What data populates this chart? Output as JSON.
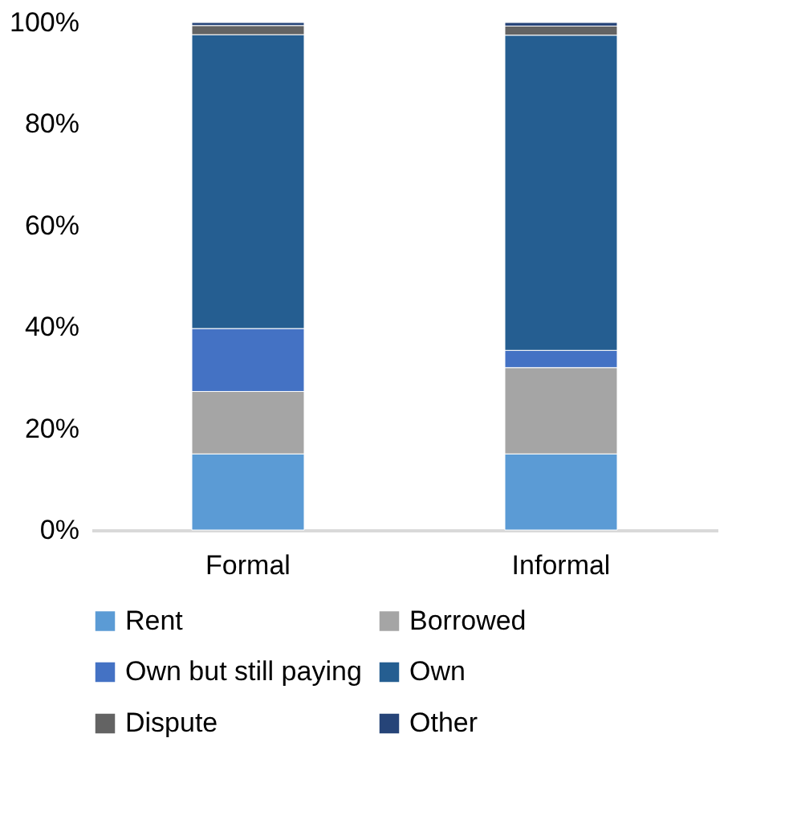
{
  "chart_data": {
    "type": "bar",
    "stacked": true,
    "categories": [
      "Formal",
      "Informal"
    ],
    "series": [
      {
        "name": "Rent",
        "color": "#5b9bd5",
        "values": [
          15,
          15
        ]
      },
      {
        "name": "Borrowed",
        "color": "#a5a5a5",
        "values": [
          12.3,
          17
        ]
      },
      {
        "name": "Own but still paying",
        "color": "#4472c4",
        "values": [
          12.4,
          3.4
        ]
      },
      {
        "name": "Own",
        "color": "#255e91",
        "values": [
          57.9,
          62.1
        ]
      },
      {
        "name": "Dispute",
        "color": "#636363",
        "values": [
          1.8,
          1.8
        ]
      },
      {
        "name": "Other",
        "color": "#264478",
        "values": [
          0.6,
          0.7
        ]
      }
    ],
    "ylim": [
      0,
      100
    ],
    "yticks": [
      {
        "value": 0,
        "label": "0%"
      },
      {
        "value": 20,
        "label": "20%"
      },
      {
        "value": 40,
        "label": "40%"
      },
      {
        "value": 60,
        "label": "60%"
      },
      {
        "value": 80,
        "label": "80%"
      },
      {
        "value": 100,
        "label": "100%"
      }
    ],
    "grid": false,
    "legend": "bottom"
  }
}
